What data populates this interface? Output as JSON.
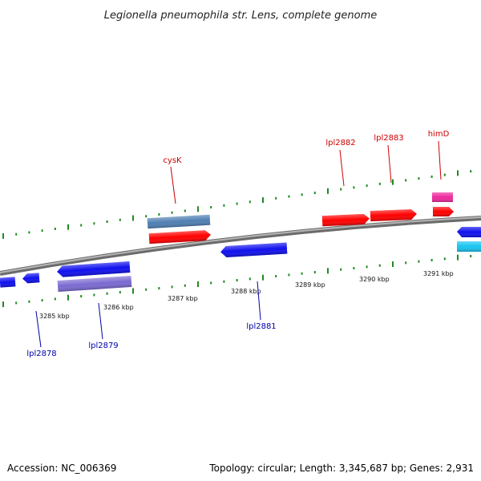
{
  "title": "Legionella pneumophila str. Lens, complete genome",
  "footer": {
    "accession": "Accession: NC_006369",
    "summary": "Topology: circular; Length: 3,345,687 bp; Genes: 2,931"
  },
  "colors": {
    "backbone": "#8a8a8a",
    "tick": "#1f8a1f",
    "forward_label": "#cc0000",
    "reverse_label": "#0000aa",
    "gene_red": "#ff0000",
    "gene_blue": "#1010ee",
    "gene_steel": "#4f7fb2",
    "gene_purple": "#7b6ad1",
    "gene_pink": "#ee2a9c",
    "gene_cyan": "#18c4ef"
  },
  "ticks": [
    {
      "label": "3285 kbp"
    },
    {
      "label": "3286 kbp"
    },
    {
      "label": "3287 kbp"
    },
    {
      "label": "3288 kbp"
    },
    {
      "label": "3289 kbp"
    },
    {
      "label": "3290 kbp"
    },
    {
      "label": "3291 kbp"
    }
  ],
  "gene_labels": [
    {
      "name": "cysK",
      "strand": "forward"
    },
    {
      "name": "lpl2882",
      "strand": "forward"
    },
    {
      "name": "lpl2883",
      "strand": "forward"
    },
    {
      "name": "himD",
      "strand": "forward"
    },
    {
      "name": "lpl2878",
      "strand": "reverse"
    },
    {
      "name": "lpl2879",
      "strand": "reverse"
    },
    {
      "name": "lpl2881",
      "strand": "reverse"
    }
  ]
}
